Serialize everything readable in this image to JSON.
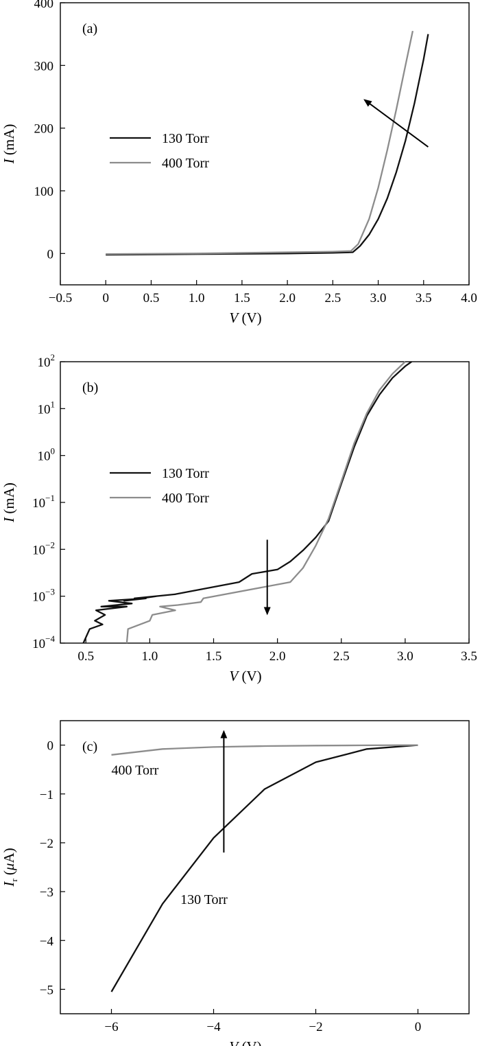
{
  "chart_data": [
    {
      "panel": "(a)",
      "type": "line",
      "xlabel_var": "V",
      "xlabel_unit": " (V)",
      "ylabel_var": "I",
      "ylabel_unit": " (mA)",
      "xlim": [
        -0.5,
        4.0
      ],
      "ylim": [
        -50,
        400
      ],
      "yscale": "linear",
      "xticks": [
        -0.5,
        0,
        0.5,
        1.0,
        1.5,
        2.0,
        2.5,
        3.0,
        3.5,
        4.0
      ],
      "xtick_labels": [
        "−0.5",
        "0",
        "0.5",
        "1.0",
        "1.5",
        "2.0",
        "2.5",
        "3.0",
        "3.5",
        "4.0"
      ],
      "yticks": [
        0,
        100,
        200,
        300,
        400
      ],
      "ytick_labels": [
        "0",
        "100",
        "200",
        "300",
        "400"
      ],
      "legend": "left",
      "series": [
        {
          "name": "130 Torr",
          "color": "#111111",
          "x": [
            0,
            1.0,
            2.0,
            2.5,
            2.72,
            2.8,
            2.9,
            3.0,
            3.1,
            3.2,
            3.3,
            3.4,
            3.5,
            3.55
          ],
          "y": [
            -2,
            -1,
            0,
            1,
            2,
            12,
            30,
            55,
            88,
            130,
            180,
            240,
            310,
            350
          ]
        },
        {
          "name": "400 Torr",
          "color": "#8c8c8c",
          "x": [
            0,
            1.0,
            2.0,
            2.5,
            2.7,
            2.78,
            2.9,
            3.0,
            3.1,
            3.2,
            3.3,
            3.38
          ],
          "y": [
            -1,
            0,
            2,
            3,
            4,
            15,
            55,
            105,
            165,
            230,
            300,
            355
          ]
        }
      ],
      "annotations": [
        {
          "type": "arrow",
          "from": [
            3.55,
            170
          ],
          "to": [
            2.85,
            245
          ]
        }
      ]
    },
    {
      "panel": "(b)",
      "type": "line",
      "xlabel_var": "V",
      "xlabel_unit": " (V)",
      "ylabel_var": "I",
      "ylabel_unit": " (mA)",
      "xlim": [
        0.3,
        3.5
      ],
      "ylim": [
        0.0001,
        100
      ],
      "yscale": "log",
      "xticks": [
        0.5,
        1.0,
        1.5,
        2.0,
        2.5,
        3.0,
        3.5
      ],
      "xtick_labels": [
        "0.5",
        "1.0",
        "1.5",
        "2.0",
        "2.5",
        "3.0",
        "3.5"
      ],
      "yticks": [
        0.0001,
        0.001,
        0.01,
        0.1,
        1,
        10,
        100
      ],
      "ytick_base": [
        "10",
        "10",
        "10",
        "10",
        "10",
        "10",
        "10"
      ],
      "ytick_exp": [
        "−4",
        "−3",
        "−2",
        "−1",
        "0",
        "1",
        "2"
      ],
      "legend": "left",
      "series": [
        {
          "name": "130 Torr",
          "color": "#111111",
          "x": [
            0.48,
            0.53,
            0.63,
            0.57,
            0.65,
            0.58,
            0.82,
            0.62,
            0.86,
            0.68,
            0.97,
            0.8,
            1.05,
            0.88,
            1.2,
            1.7,
            1.8,
            2.0,
            2.1,
            2.2,
            2.3,
            2.4,
            2.5,
            2.6,
            2.7,
            2.8,
            2.9,
            3.0,
            3.05
          ],
          "y": [
            0.0001,
            0.0002,
            0.00025,
            0.0003,
            0.0004,
            0.0005,
            0.0006,
            0.0006,
            0.0007,
            0.0008,
            0.0009,
            0.0008,
            0.001,
            0.0009,
            0.0011,
            0.002,
            0.003,
            0.0037,
            0.0055,
            0.0095,
            0.018,
            0.04,
            0.25,
            1.5,
            7,
            20,
            45,
            80,
            100
          ]
        },
        {
          "name": "400 Torr",
          "color": "#8c8c8c",
          "x": [
            0.82,
            0.83,
            1.0,
            1.02,
            1.2,
            1.08,
            1.22,
            1.4,
            1.42,
            2.1,
            2.2,
            2.3,
            2.4,
            2.5,
            2.6,
            2.7,
            2.8,
            2.9,
            3.0
          ],
          "y": [
            0.0001,
            0.0002,
            0.0003,
            0.0004,
            0.0005,
            0.0006,
            0.00065,
            0.00075,
            0.0009,
            0.002,
            0.004,
            0.012,
            0.045,
            0.28,
            1.8,
            8,
            25,
            55,
            100
          ]
        }
      ],
      "annotations": [
        {
          "type": "arrow",
          "from": [
            1.92,
            0.016
          ],
          "to": [
            1.92,
            0.00042
          ]
        }
      ]
    },
    {
      "panel": "(c)",
      "type": "line",
      "xlabel_var": "V",
      "xlabel_unit": " (V)",
      "ylabel_var": "I",
      "ylabel_sub": "r",
      "ylabel_greek": "μ",
      "ylabel_unit_rest": "A)",
      "xlim": [
        -7,
        1
      ],
      "ylim": [
        -5.5,
        0.5
      ],
      "yscale": "linear",
      "xticks": [
        -6,
        -4,
        -2,
        0
      ],
      "xtick_labels": [
        "−6",
        "−4",
        "−2",
        "0"
      ],
      "yticks": [
        -5,
        -4,
        -3,
        -2,
        -1,
        0
      ],
      "ytick_labels": [
        "−5",
        "−4",
        "−3",
        "−2",
        "−1",
        "0"
      ],
      "legend": "none",
      "series": [
        {
          "name": "130 Torr",
          "color": "#111111",
          "x": [
            -6,
            -5,
            -4,
            -3,
            -2,
            -1,
            0
          ],
          "y": [
            -5.05,
            -3.25,
            -1.9,
            -0.9,
            -0.35,
            -0.08,
            0
          ]
        },
        {
          "name": "400 Torr",
          "color": "#8c8c8c",
          "x": [
            -6,
            -5,
            -4,
            -3,
            -2,
            -1,
            0
          ],
          "y": [
            -0.2,
            -0.08,
            -0.04,
            -0.02,
            -0.01,
            -0.005,
            0
          ]
        }
      ],
      "series_labels": [
        {
          "text": "400 Torr",
          "x": -6.0,
          "y": -0.6
        },
        {
          "text": "130 Torr",
          "x": -4.65,
          "y": -3.25
        }
      ],
      "annotations": [
        {
          "type": "arrow",
          "from": [
            -3.8,
            -2.2
          ],
          "to": [
            -3.8,
            0.28
          ]
        }
      ]
    }
  ]
}
